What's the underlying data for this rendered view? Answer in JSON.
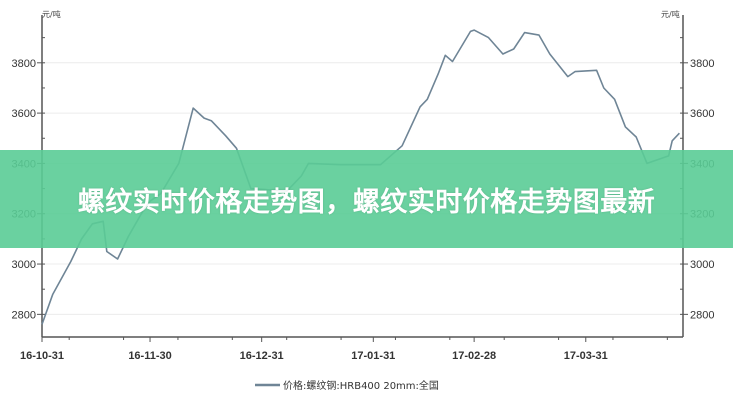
{
  "chart_data": {
    "type": "line",
    "title": "",
    "unit_left": "元/吨",
    "unit_right": "元/吨",
    "xlabel": "",
    "ylabel": "",
    "ylim": [
      2710,
      3990
    ],
    "xlim": [
      "2016-10-31",
      "2017-04-27"
    ],
    "y_ticks": [
      2800,
      3000,
      3200,
      3400,
      3600,
      3800
    ],
    "y_tick_labels": [
      "2800",
      "3000",
      "3200",
      "3400",
      "3600",
      "3800"
    ],
    "x_ticks": [
      "2016-10-31",
      "2016-11-30",
      "2016-12-31",
      "2017-01-31",
      "2017-02-28",
      "2017-03-31"
    ],
    "x_tick_labels": [
      "16-10-31",
      "16-11-30",
      "16-12-31",
      "17-01-31",
      "17-02-28",
      "17-03-31"
    ],
    "grid": true,
    "legend_position": "bottom",
    "color": "#6f8596",
    "series": [
      {
        "name": "价格:螺纹钢:HRB400 20mm:全国",
        "points": [
          [
            "2016-10-31",
            2760
          ],
          [
            "2016-11-03",
            2880
          ],
          [
            "2016-11-08",
            3010
          ],
          [
            "2016-11-11",
            3100
          ],
          [
            "2016-11-14",
            3160
          ],
          [
            "2016-11-17",
            3170
          ],
          [
            "2016-11-18",
            3050
          ],
          [
            "2016-11-21",
            3020
          ],
          [
            "2016-11-24",
            3110
          ],
          [
            "2016-11-28",
            3210
          ],
          [
            "2016-11-30",
            3250
          ],
          [
            "2016-12-03",
            3280
          ],
          [
            "2016-12-08",
            3400
          ],
          [
            "2016-12-12",
            3620
          ],
          [
            "2016-12-15",
            3580
          ],
          [
            "2016-12-17",
            3570
          ],
          [
            "2016-12-21",
            3510
          ],
          [
            "2016-12-24",
            3460
          ],
          [
            "2016-12-28",
            3300
          ],
          [
            "2017-01-07",
            3290
          ],
          [
            "2017-01-11",
            3350
          ],
          [
            "2017-01-13",
            3400
          ],
          [
            "2017-01-22",
            3395
          ],
          [
            "2017-02-02",
            3395
          ],
          [
            "2017-02-08",
            3470
          ],
          [
            "2017-02-13",
            3625
          ],
          [
            "2017-02-15",
            3655
          ],
          [
            "2017-02-18",
            3755
          ],
          [
            "2017-02-20",
            3830
          ],
          [
            "2017-02-22",
            3805
          ],
          [
            "2017-02-27",
            3925
          ],
          [
            "2017-02-28",
            3930
          ],
          [
            "2017-03-04",
            3900
          ],
          [
            "2017-03-08",
            3835
          ],
          [
            "2017-03-11",
            3855
          ],
          [
            "2017-03-14",
            3920
          ],
          [
            "2017-03-18",
            3910
          ],
          [
            "2017-03-21",
            3835
          ],
          [
            "2017-03-26",
            3745
          ],
          [
            "2017-03-28",
            3765
          ],
          [
            "2017-04-03",
            3770
          ],
          [
            "2017-04-05",
            3700
          ],
          [
            "2017-04-08",
            3655
          ],
          [
            "2017-04-11",
            3545
          ],
          [
            "2017-04-14",
            3505
          ],
          [
            "2017-04-17",
            3400
          ],
          [
            "2017-04-23",
            3430
          ],
          [
            "2017-04-24",
            3490
          ],
          [
            "2017-04-26",
            3520
          ]
        ]
      }
    ]
  },
  "banner": {
    "text": "螺纹实时价格走势图，螺纹实时价格走势图最新",
    "color": "#5acd96"
  }
}
